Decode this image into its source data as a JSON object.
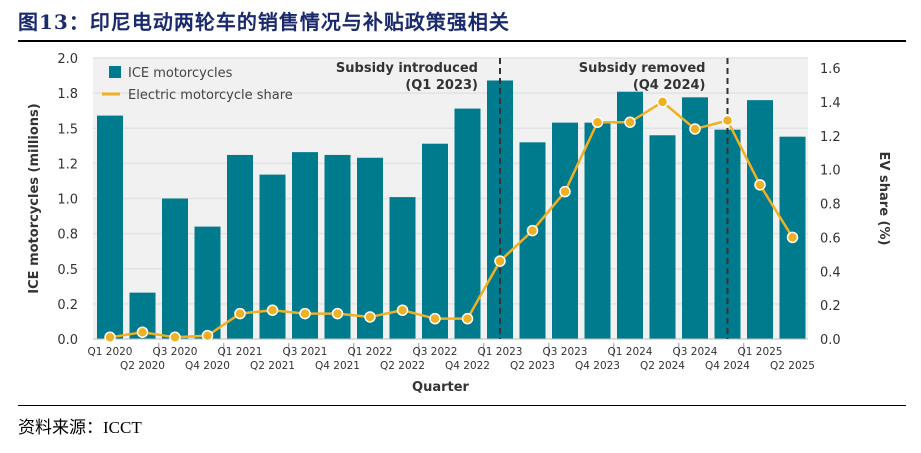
{
  "title": "图13：印尼电动两轮车的销售情况与补贴政策强相关",
  "source": "资料来源：ICCT",
  "colors": {
    "bar": "#007b8d",
    "line": "#efb024",
    "background": "#f1f1f1",
    "grid": "#e2e2e2"
  },
  "chart_data": {
    "type": "bar+line",
    "categories": [
      "Q1 2020",
      "Q2 2020",
      "Q3 2020",
      "Q4 2020",
      "Q1 2021",
      "Q2 2021",
      "Q3 2021",
      "Q4 2021",
      "Q1 2022",
      "Q2 2022",
      "Q3 2022",
      "Q4 2022",
      "Q1 2023",
      "Q2 2023",
      "Q3 2023",
      "Q4 2023",
      "Q1 2024",
      "Q2 2024",
      "Q3 2024",
      "Q4 2024",
      "Q1 2025",
      "Q2 2025"
    ],
    "series": [
      {
        "name": "ICE motorcycles",
        "type": "bar",
        "axis": "left",
        "values": [
          1.59,
          0.33,
          1.0,
          0.8,
          1.31,
          1.17,
          1.33,
          1.31,
          1.29,
          1.01,
          1.39,
          1.64,
          1.84,
          1.4,
          1.54,
          1.54,
          1.76,
          1.45,
          1.72,
          1.49,
          1.7,
          1.44
        ]
      },
      {
        "name": "Electric motorcycle share",
        "type": "line",
        "axis": "right",
        "values": [
          0.01,
          0.04,
          0.01,
          0.02,
          0.15,
          0.17,
          0.15,
          0.15,
          0.13,
          0.17,
          0.12,
          0.12,
          0.46,
          0.64,
          0.87,
          1.28,
          1.28,
          1.4,
          1.24,
          1.29,
          0.91,
          0.6
        ]
      }
    ],
    "xlabel": "Quarter",
    "ylabel": "ICE motorcycles (millions)",
    "y2label": "EV share (%)",
    "ylim": [
      0,
      2.0
    ],
    "y2lim": [
      0,
      1.6
    ],
    "yticks": [
      0,
      0.25,
      0.5,
      0.75,
      1.0,
      1.25,
      1.5,
      1.75,
      2.0
    ],
    "yticklabels": [
      "0.0",
      "0.2",
      "0.5",
      "0.8",
      "1.0",
      "1.2",
      "1.5",
      "1.8",
      "2.0"
    ],
    "y2ticks": [
      0,
      0.2,
      0.4,
      0.6,
      0.8,
      1.0,
      1.2,
      1.4,
      1.6
    ],
    "y2ticklabels": [
      "0.0",
      "0.2",
      "0.4",
      "0.6",
      "0.8",
      "1.0",
      "1.2",
      "1.4",
      "1.6"
    ],
    "grid": true,
    "legend": "top-left",
    "annotations": [
      {
        "at": "Q1 2023",
        "line1": "Subsidy introduced",
        "line2": "(Q1 2023)"
      },
      {
        "at": "Q4 2024",
        "line1": "Subsidy removed",
        "line2": "(Q4 2024)"
      }
    ]
  }
}
